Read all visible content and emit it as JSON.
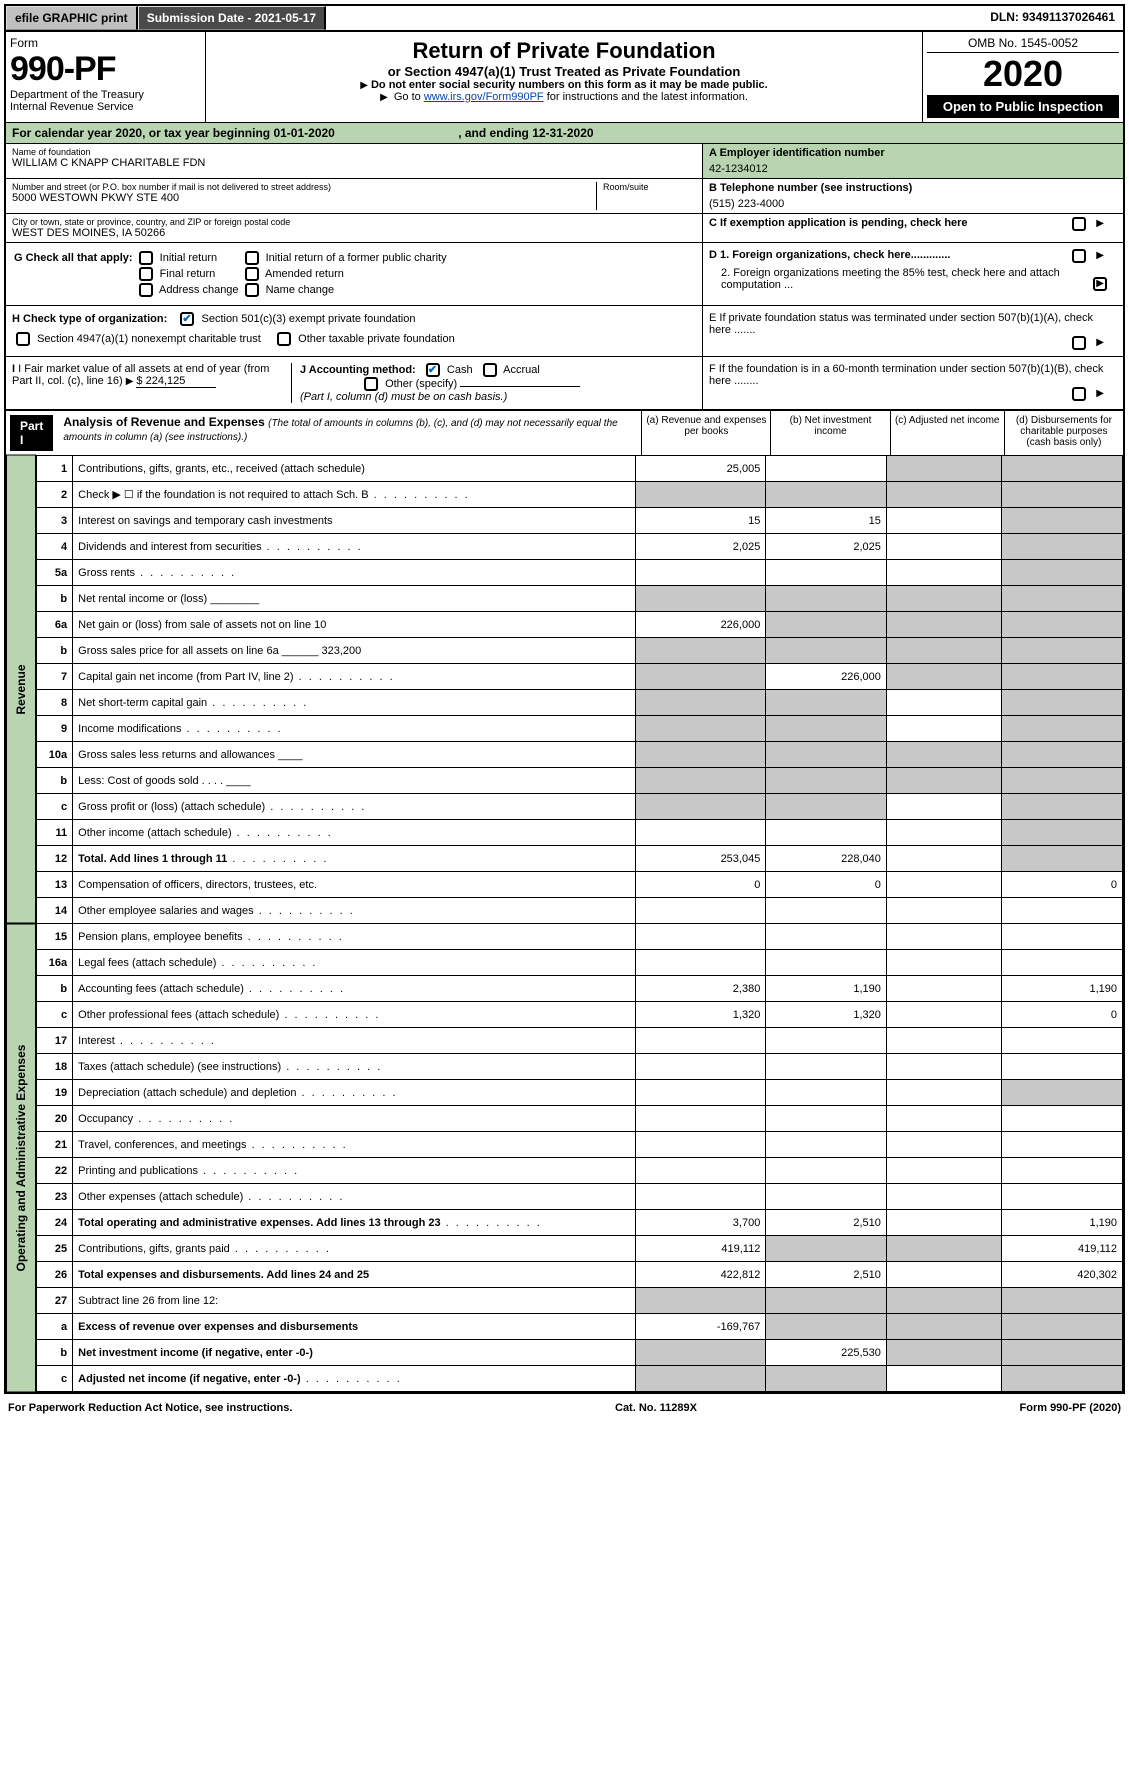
{
  "topbar": {
    "efile": "efile GRAPHIC print",
    "submission_label": "Submission Date - 2021-05-17",
    "dln": "DLN: 93491137026461"
  },
  "header": {
    "form_word": "Form",
    "form_number": "990-PF",
    "dept": "Department of the Treasury",
    "irs": "Internal Revenue Service",
    "title": "Return of Private Foundation",
    "subtitle": "or Section 4947(a)(1) Trust Treated as Private Foundation",
    "instr1": "Do not enter social security numbers on this form as it may be made public.",
    "instr2_pre": "Go to ",
    "instr2_link": "www.irs.gov/Form990PF",
    "instr2_post": " for instructions and the latest information.",
    "omb": "OMB No. 1545-0052",
    "year": "2020",
    "open_insp": "Open to Public Inspection"
  },
  "calendar": {
    "text_pre": "For calendar year 2020, or tax year beginning ",
    "begin": "01-01-2020",
    "mid": ", and ending ",
    "end": "12-31-2020"
  },
  "foundation": {
    "name_label": "Name of foundation",
    "name": "WILLIAM C KNAPP CHARITABLE FDN",
    "addr_label": "Number and street (or P.O. box number if mail is not delivered to street address)",
    "room_label": "Room/suite",
    "addr": "5000 WESTOWN PKWY STE 400",
    "city_label": "City or town, state or province, country, and ZIP or foreign postal code",
    "city": "WEST DES MOINES, IA  50266"
  },
  "right_info": {
    "a_label": "A Employer identification number",
    "a_val": "42-1234012",
    "b_label": "B Telephone number (see instructions)",
    "b_val": "(515) 223-4000",
    "c_label": "C If exemption application is pending, check here",
    "d1": "D 1. Foreign organizations, check here.............",
    "d2": "2. Foreign organizations meeting the 85% test, check here and attach computation ...",
    "e": "E  If private foundation status was terminated under section 507(b)(1)(A), check here .......",
    "f": "F  If the foundation is in a 60-month termination under section 507(b)(1)(B), check here ........"
  },
  "g_checks": {
    "label": "G Check all that apply:",
    "opts": [
      "Initial return",
      "Initial return of a former public charity",
      "Final return",
      "Amended return",
      "Address change",
      "Name change"
    ]
  },
  "h_checks": {
    "label": "H Check type of organization:",
    "opt1": "Section 501(c)(3) exempt private foundation",
    "opt2": "Section 4947(a)(1) nonexempt charitable trust",
    "opt3": "Other taxable private foundation"
  },
  "i_j": {
    "i_label": "I Fair market value of all assets at end of year (from Part II, col. (c), line 16)",
    "i_val": "$  224,125",
    "j_label": "J Accounting method:",
    "j_cash": "Cash",
    "j_accrual": "Accrual",
    "j_other": "Other (specify)",
    "j_note": "(Part I, column (d) must be on cash basis.)"
  },
  "part1": {
    "label": "Part I",
    "title": "Analysis of Revenue and Expenses",
    "note": "(The total of amounts in columns (b), (c), and (d) may not necessarily equal the amounts in column (a) (see instructions).)",
    "col_a": "(a)    Revenue and expenses per books",
    "col_b": "(b)   Net investment income",
    "col_c": "(c)   Adjusted net income",
    "col_d": "(d)   Disbursements for charitable purposes (cash basis only)"
  },
  "side_labels": {
    "revenue": "Revenue",
    "expenses": "Operating and Administrative Expenses"
  },
  "lines": [
    {
      "n": "1",
      "desc": "Contributions, gifts, grants, etc., received (attach schedule)",
      "a": "25,005",
      "b": "",
      "c": "s",
      "d": "s"
    },
    {
      "n": "2",
      "desc": "Check ▶ ☐ if the foundation is not required to attach Sch. B",
      "a": "s",
      "b": "s",
      "c": "s",
      "d": "s",
      "dots": true
    },
    {
      "n": "3",
      "desc": "Interest on savings and temporary cash investments",
      "a": "15",
      "b": "15",
      "c": "",
      "d": "s"
    },
    {
      "n": "4",
      "desc": "Dividends and interest from securities",
      "a": "2,025",
      "b": "2,025",
      "c": "",
      "d": "s",
      "dots": true
    },
    {
      "n": "5a",
      "desc": "Gross rents",
      "a": "",
      "b": "",
      "c": "",
      "d": "s",
      "dots": true
    },
    {
      "n": "b",
      "desc": "Net rental income or (loss)  ________",
      "a": "s",
      "b": "s",
      "c": "s",
      "d": "s"
    },
    {
      "n": "6a",
      "desc": "Net gain or (loss) from sale of assets not on line 10",
      "a": "226,000",
      "b": "s",
      "c": "s",
      "d": "s"
    },
    {
      "n": "b",
      "desc": "Gross sales price for all assets on line 6a ______ 323,200",
      "a": "s",
      "b": "s",
      "c": "s",
      "d": "s"
    },
    {
      "n": "7",
      "desc": "Capital gain net income (from Part IV, line 2)",
      "a": "s",
      "b": "226,000",
      "c": "s",
      "d": "s",
      "dots": true
    },
    {
      "n": "8",
      "desc": "Net short-term capital gain",
      "a": "s",
      "b": "s",
      "c": "",
      "d": "s",
      "dots": true
    },
    {
      "n": "9",
      "desc": "Income modifications",
      "a": "s",
      "b": "s",
      "c": "",
      "d": "s",
      "dots": true
    },
    {
      "n": "10a",
      "desc": "Gross sales less returns and allowances  ____",
      "a": "s",
      "b": "s",
      "c": "s",
      "d": "s"
    },
    {
      "n": "b",
      "desc": "Less: Cost of goods sold      .   .   .   .  ____",
      "a": "s",
      "b": "s",
      "c": "s",
      "d": "s"
    },
    {
      "n": "c",
      "desc": "Gross profit or (loss) (attach schedule)",
      "a": "s",
      "b": "s",
      "c": "",
      "d": "s",
      "dots": true
    },
    {
      "n": "11",
      "desc": "Other income (attach schedule)",
      "a": "",
      "b": "",
      "c": "",
      "d": "s",
      "dots": true
    },
    {
      "n": "12",
      "desc": "Total. Add lines 1 through 11",
      "a": "253,045",
      "b": "228,040",
      "c": "",
      "d": "s",
      "bold": true,
      "dots": true
    },
    {
      "n": "13",
      "desc": "Compensation of officers, directors, trustees, etc.",
      "a": "0",
      "b": "0",
      "c": "",
      "d": "0"
    },
    {
      "n": "14",
      "desc": "Other employee salaries and wages",
      "a": "",
      "b": "",
      "c": "",
      "d": "",
      "dots": true
    },
    {
      "n": "15",
      "desc": "Pension plans, employee benefits",
      "a": "",
      "b": "",
      "c": "",
      "d": "",
      "dots": true
    },
    {
      "n": "16a",
      "desc": "Legal fees (attach schedule)",
      "a": "",
      "b": "",
      "c": "",
      "d": "",
      "dots": true
    },
    {
      "n": "b",
      "desc": "Accounting fees (attach schedule)",
      "a": "2,380",
      "b": "1,190",
      "c": "",
      "d": "1,190",
      "dots": true
    },
    {
      "n": "c",
      "desc": "Other professional fees (attach schedule)",
      "a": "1,320",
      "b": "1,320",
      "c": "",
      "d": "0",
      "dots": true
    },
    {
      "n": "17",
      "desc": "Interest",
      "a": "",
      "b": "",
      "c": "",
      "d": "",
      "dots": true
    },
    {
      "n": "18",
      "desc": "Taxes (attach schedule) (see instructions)",
      "a": "",
      "b": "",
      "c": "",
      "d": "",
      "dots": true
    },
    {
      "n": "19",
      "desc": "Depreciation (attach schedule) and depletion",
      "a": "",
      "b": "",
      "c": "",
      "d": "s",
      "dots": true
    },
    {
      "n": "20",
      "desc": "Occupancy",
      "a": "",
      "b": "",
      "c": "",
      "d": "",
      "dots": true
    },
    {
      "n": "21",
      "desc": "Travel, conferences, and meetings",
      "a": "",
      "b": "",
      "c": "",
      "d": "",
      "dots": true
    },
    {
      "n": "22",
      "desc": "Printing and publications",
      "a": "",
      "b": "",
      "c": "",
      "d": "",
      "dots": true
    },
    {
      "n": "23",
      "desc": "Other expenses (attach schedule)",
      "a": "",
      "b": "",
      "c": "",
      "d": "",
      "dots": true
    },
    {
      "n": "24",
      "desc": "Total operating and administrative expenses. Add lines 13 through 23",
      "a": "3,700",
      "b": "2,510",
      "c": "",
      "d": "1,190",
      "bold": true,
      "dots": true
    },
    {
      "n": "25",
      "desc": "Contributions, gifts, grants paid",
      "a": "419,112",
      "b": "s",
      "c": "s",
      "d": "419,112",
      "dots": true
    },
    {
      "n": "26",
      "desc": "Total expenses and disbursements. Add lines 24 and 25",
      "a": "422,812",
      "b": "2,510",
      "c": "",
      "d": "420,302",
      "bold": true
    },
    {
      "n": "27",
      "desc": "Subtract line 26 from line 12:",
      "a": "s",
      "b": "s",
      "c": "s",
      "d": "s"
    },
    {
      "n": "a",
      "desc": "Excess of revenue over expenses and disbursements",
      "a": "-169,767",
      "b": "s",
      "c": "s",
      "d": "s",
      "bold": true
    },
    {
      "n": "b",
      "desc": "Net investment income (if negative, enter -0-)",
      "a": "s",
      "b": "225,530",
      "c": "s",
      "d": "s",
      "bold": true
    },
    {
      "n": "c",
      "desc": "Adjusted net income (if negative, enter -0-)",
      "a": "s",
      "b": "s",
      "c": "",
      "d": "s",
      "bold": true,
      "dots": true
    }
  ],
  "footer": {
    "left": "For Paperwork Reduction Act Notice, see instructions.",
    "cat": "Cat. No. 11289X",
    "form": "Form 990-PF (2020)"
  },
  "colors": {
    "green_bg": "#b8d4b0",
    "gray_btn": "#c0c0c0",
    "shade": "#c8c8c8",
    "link": "#0645ad"
  }
}
